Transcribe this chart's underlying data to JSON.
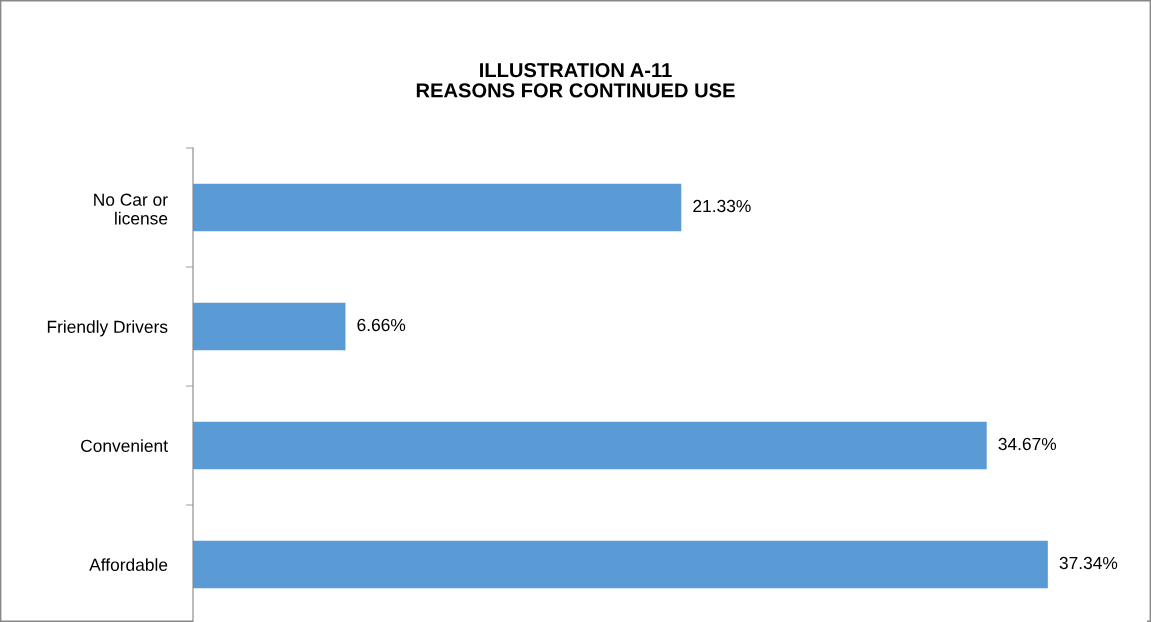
{
  "chart_data": {
    "type": "bar",
    "orientation": "horizontal",
    "title": "ILLUSTRATION A-11\nREASONS FOR CONTINUED USE",
    "categories": [
      "No Car or\nlicense",
      "Friendly Drivers",
      "Convenient",
      "Affordable"
    ],
    "values": [
      21.33,
      6.66,
      34.67,
      37.34
    ],
    "color": "#5b9bd5",
    "value_labels": [
      "21.33%",
      "6.66%",
      "34.67%",
      "37.34%"
    ],
    "grid": false,
    "legend": false
  }
}
